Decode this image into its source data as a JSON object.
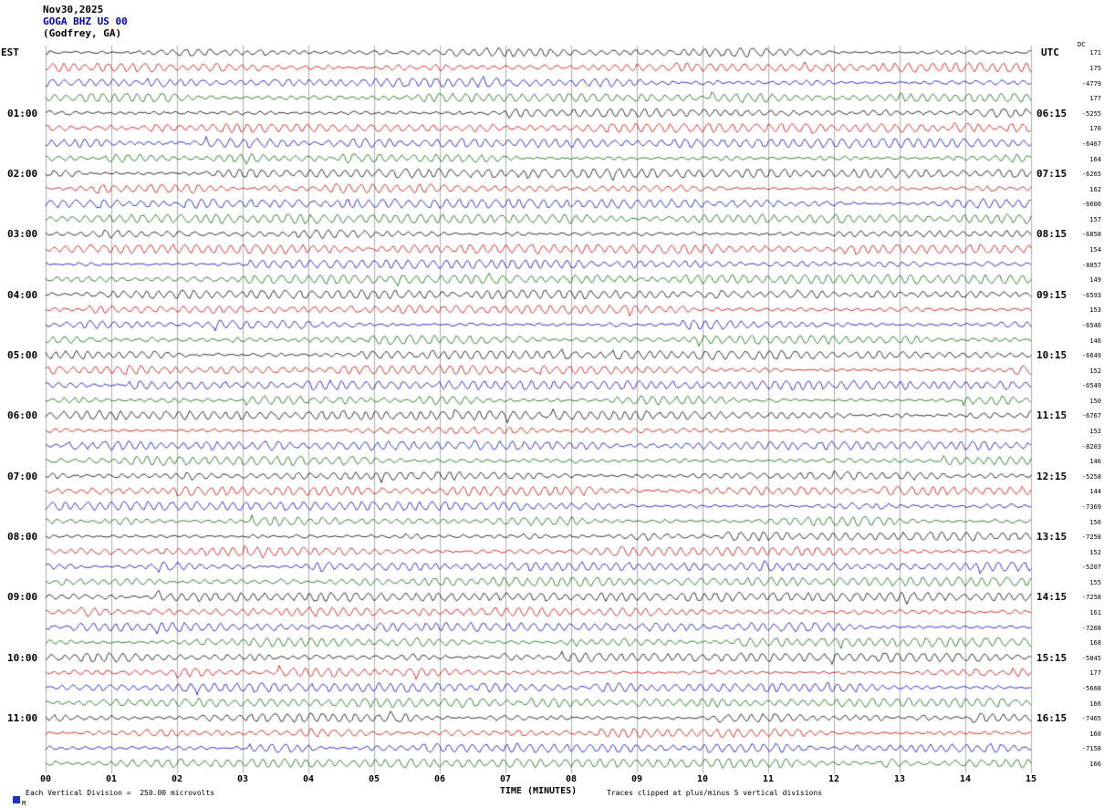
{
  "header": {
    "date": "Nov30,2025",
    "station": "GOGA BHZ US 00",
    "location": "(Godfrey, GA)"
  },
  "axes": {
    "left_label": "EST",
    "right_label": "UTC",
    "x_label": "TIME (MINUTES)",
    "x_ticks": [
      "00",
      "01",
      "02",
      "03",
      "04",
      "05",
      "06",
      "07",
      "08",
      "09",
      "10",
      "11",
      "12",
      "13",
      "14",
      "15"
    ]
  },
  "footer": {
    "scale_note": "Each Vertical Division =  250.00 microvolts",
    "clip_note": "Traces clipped at plus/minus 5 vertical divisions",
    "corner_mark": "M"
  },
  "chart_data": {
    "type": "line",
    "subtype": "helicorder-seismogram",
    "title": "GOGA BHZ US 00 (Godfrey, GA) Nov30,2025",
    "xlabel": "TIME (MINUTES)",
    "x_range_minutes": [
      0,
      15
    ],
    "minutes_per_row": 15,
    "rows_total": 48,
    "grid": "vertical lines every 1 minute",
    "legend_position": "none",
    "dc_label": "DC",
    "trace_colors": {
      "black": "#000000",
      "red": "#cc0000",
      "blue": "#0000bb",
      "green": "#006600"
    },
    "color_cycle": [
      "black",
      "red",
      "blue",
      "green"
    ],
    "rows": [
      {
        "color": "black",
        "left": "",
        "right": "",
        "value": "171"
      },
      {
        "color": "red",
        "left": "",
        "right": "",
        "value": "175"
      },
      {
        "color": "blue",
        "left": "",
        "right": "",
        "value": "-4779"
      },
      {
        "color": "green",
        "left": "",
        "right": "",
        "value": "177"
      },
      {
        "color": "black",
        "left": "01:00",
        "right": "06:15",
        "value": "-5255"
      },
      {
        "color": "red",
        "left": "",
        "right": "",
        "value": "170"
      },
      {
        "color": "blue",
        "left": "",
        "right": "",
        "value": "-6467"
      },
      {
        "color": "green",
        "left": "",
        "right": "",
        "value": "164"
      },
      {
        "color": "black",
        "left": "02:00",
        "right": "07:15",
        "value": "-6265"
      },
      {
        "color": "red",
        "left": "",
        "right": "",
        "value": "162"
      },
      {
        "color": "blue",
        "left": "",
        "right": "",
        "value": "-6600"
      },
      {
        "color": "green",
        "left": "",
        "right": "",
        "value": "157"
      },
      {
        "color": "black",
        "left": "03:00",
        "right": "08:15",
        "value": "-6858"
      },
      {
        "color": "red",
        "left": "",
        "right": "",
        "value": "154"
      },
      {
        "color": "blue",
        "left": "",
        "right": "",
        "value": "-8057"
      },
      {
        "color": "green",
        "left": "",
        "right": "",
        "value": "149"
      },
      {
        "color": "black",
        "left": "04:00",
        "right": "09:15",
        "value": "-6593"
      },
      {
        "color": "red",
        "left": "",
        "right": "",
        "value": "153"
      },
      {
        "color": "blue",
        "left": "",
        "right": "",
        "value": "-6546"
      },
      {
        "color": "green",
        "left": "",
        "right": "",
        "value": "146"
      },
      {
        "color": "black",
        "left": "05:00",
        "right": "10:15",
        "value": "-6649"
      },
      {
        "color": "red",
        "left": "",
        "right": "",
        "value": "152"
      },
      {
        "color": "blue",
        "left": "",
        "right": "",
        "value": "-6549"
      },
      {
        "color": "green",
        "left": "",
        "right": "",
        "value": "150"
      },
      {
        "color": "black",
        "left": "06:00",
        "right": "11:15",
        "value": "-6767"
      },
      {
        "color": "red",
        "left": "",
        "right": "",
        "value": "152"
      },
      {
        "color": "blue",
        "left": "",
        "right": "",
        "value": "-8203"
      },
      {
        "color": "green",
        "left": "",
        "right": "",
        "value": "146"
      },
      {
        "color": "black",
        "left": "07:00",
        "right": "12:15",
        "value": "-5258"
      },
      {
        "color": "red",
        "left": "",
        "right": "",
        "value": "144"
      },
      {
        "color": "blue",
        "left": "",
        "right": "",
        "value": "-7369"
      },
      {
        "color": "green",
        "left": "",
        "right": "",
        "value": "150"
      },
      {
        "color": "black",
        "left": "08:00",
        "right": "13:15",
        "value": "-7258"
      },
      {
        "color": "red",
        "left": "",
        "right": "",
        "value": "152"
      },
      {
        "color": "blue",
        "left": "",
        "right": "",
        "value": "-5207"
      },
      {
        "color": "green",
        "left": "",
        "right": "",
        "value": "155"
      },
      {
        "color": "black",
        "left": "09:00",
        "right": "14:15",
        "value": "-7258"
      },
      {
        "color": "red",
        "left": "",
        "right": "",
        "value": "161"
      },
      {
        "color": "blue",
        "left": "",
        "right": "",
        "value": "-7268"
      },
      {
        "color": "green",
        "left": "",
        "right": "",
        "value": "168"
      },
      {
        "color": "black",
        "left": "10:00",
        "right": "15:15",
        "value": "-5845"
      },
      {
        "color": "red",
        "left": "",
        "right": "",
        "value": "177"
      },
      {
        "color": "blue",
        "left": "",
        "right": "",
        "value": "-5668"
      },
      {
        "color": "green",
        "left": "",
        "right": "",
        "value": "166"
      },
      {
        "color": "black",
        "left": "11:00",
        "right": "16:15",
        "value": "-7465"
      },
      {
        "color": "red",
        "left": "",
        "right": "",
        "value": "160"
      },
      {
        "color": "blue",
        "left": "",
        "right": "",
        "value": "-7158"
      },
      {
        "color": "green",
        "left": "",
        "right": "",
        "value": "166"
      }
    ]
  }
}
